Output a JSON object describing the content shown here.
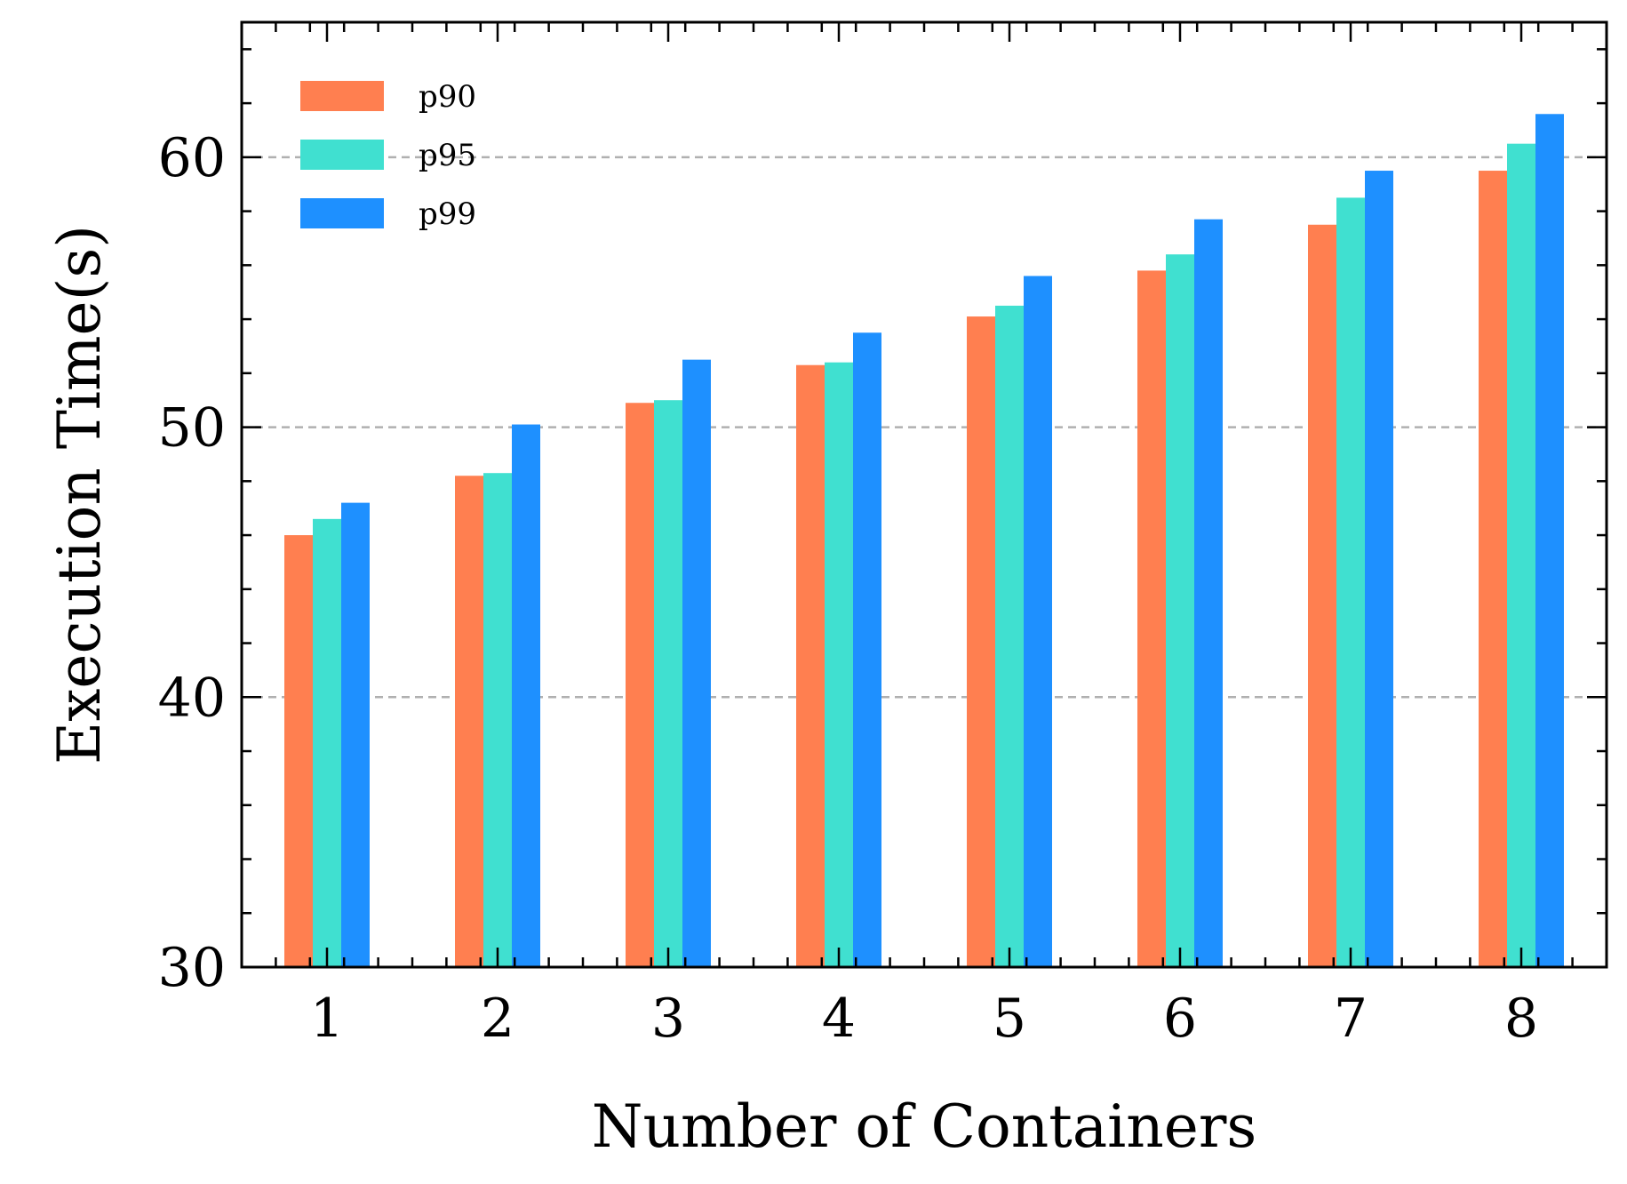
{
  "chart_data": {
    "type": "bar",
    "xlabel": "Number of Containers",
    "ylabel": "Execution Time(s)",
    "categories": [
      "1",
      "2",
      "3",
      "4",
      "5",
      "6",
      "7",
      "8"
    ],
    "series": [
      {
        "name": "p90",
        "color": "#FF7F50",
        "values": [
          46.0,
          48.2,
          50.9,
          52.3,
          54.1,
          55.8,
          57.5,
          59.5
        ]
      },
      {
        "name": "p95",
        "color": "#40E0D0",
        "values": [
          46.6,
          48.3,
          51.0,
          52.4,
          54.5,
          56.4,
          58.5,
          60.5
        ]
      },
      {
        "name": "p99",
        "color": "#1E90FF",
        "values": [
          47.2,
          50.1,
          52.5,
          53.5,
          55.6,
          57.7,
          59.5,
          61.6
        ]
      }
    ],
    "ylim": [
      30,
      65
    ],
    "yticks": [
      30,
      40,
      50,
      60
    ],
    "grid": "horizontal dashed at major y ticks",
    "legend_position": "top-left"
  }
}
